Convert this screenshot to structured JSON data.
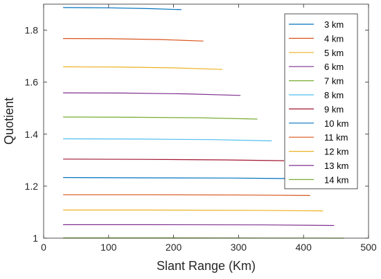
{
  "chart_data": {
    "type": "line",
    "title": "",
    "xlabel": "Slant Range (Km)",
    "ylabel": "Quotient",
    "xlim": [
      0,
      500
    ],
    "ylim": [
      1,
      1.9
    ],
    "x_ticks": [
      0,
      100,
      200,
      300,
      400,
      500
    ],
    "y_ticks": [
      1,
      1.2,
      1.4,
      1.6,
      1.8
    ],
    "x_tick_labels": [
      "0",
      "100",
      "200",
      "300",
      "400",
      "500"
    ],
    "y_tick_labels": [
      "1",
      "1.2",
      "1.4",
      "1.6",
      "1.8"
    ],
    "grid": false,
    "legend_position": "top-right",
    "series": [
      {
        "name": "3 km",
        "color": "#0072BD",
        "x": [
          30,
          100,
          160,
          212
        ],
        "y": [
          1.887,
          1.886,
          1.883,
          1.879
        ]
      },
      {
        "name": "4 km",
        "color": "#D95319",
        "x": [
          30,
          100,
          180,
          246
        ],
        "y": [
          1.768,
          1.767,
          1.764,
          1.758
        ]
      },
      {
        "name": "5 km",
        "color": "#EDB120",
        "x": [
          30,
          120,
          200,
          275
        ],
        "y": [
          1.659,
          1.658,
          1.655,
          1.649
        ]
      },
      {
        "name": "6 km",
        "color": "#7E2F8E",
        "x": [
          30,
          120,
          220,
          303
        ],
        "y": [
          1.559,
          1.558,
          1.555,
          1.549
        ]
      },
      {
        "name": "7 km",
        "color": "#77AC30",
        "x": [
          30,
          140,
          240,
          329
        ],
        "y": [
          1.466,
          1.465,
          1.463,
          1.458
        ]
      },
      {
        "name": "8 km",
        "color": "#4DBEEE",
        "x": [
          30,
          150,
          260,
          351
        ],
        "y": [
          1.382,
          1.381,
          1.379,
          1.374
        ]
      },
      {
        "name": "9 km",
        "color": "#A2142F",
        "x": [
          30,
          150,
          280,
          370
        ],
        "y": [
          1.304,
          1.303,
          1.301,
          1.298
        ]
      },
      {
        "name": "10 km",
        "color": "#0072BD",
        "x": [
          30,
          150,
          290,
          390
        ],
        "y": [
          1.233,
          1.232,
          1.231,
          1.229
        ]
      },
      {
        "name": "11 km",
        "color": "#D95319",
        "x": [
          30,
          160,
          300,
          410
        ],
        "y": [
          1.167,
          1.167,
          1.166,
          1.164
        ]
      },
      {
        "name": "12 km",
        "color": "#EDB120",
        "x": [
          30,
          160,
          320,
          430
        ],
        "y": [
          1.108,
          1.108,
          1.107,
          1.105
        ]
      },
      {
        "name": "13 km",
        "color": "#7E2F8E",
        "x": [
          30,
          170,
          340,
          447
        ],
        "y": [
          1.052,
          1.052,
          1.051,
          1.049
        ]
      },
      {
        "name": "14 km",
        "color": "#77AC30",
        "x": [
          30,
          170,
          340,
          462
        ],
        "y": [
          1.001,
          1.001,
          1.0005,
          1.0
        ]
      }
    ]
  }
}
